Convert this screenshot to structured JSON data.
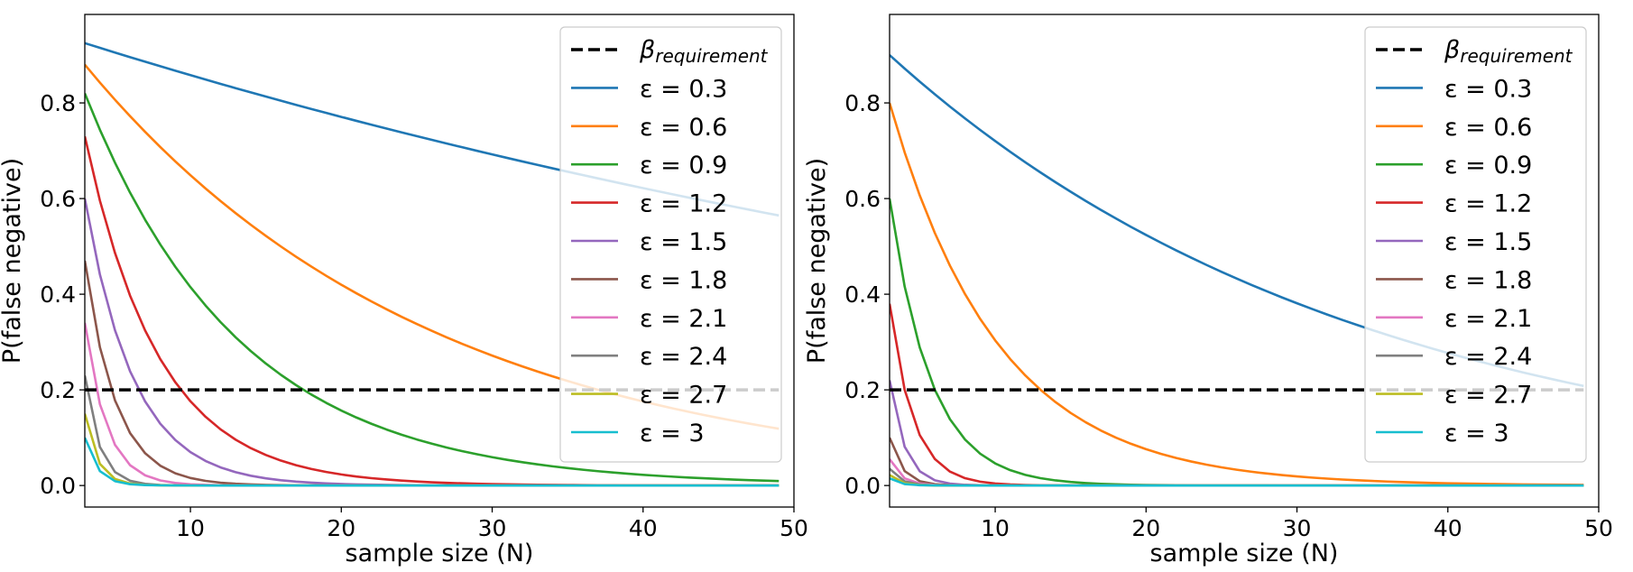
{
  "figure": {
    "description_panels": 2
  },
  "style": {
    "colors": [
      "#1f77b4",
      "#ff7f0e",
      "#2ca02c",
      "#d62728",
      "#9467bd",
      "#8c564b",
      "#e377c2",
      "#7f7f7f",
      "#bcbd22",
      "#17becf"
    ],
    "threshold_color": "#000000",
    "legend_border": "#cccccc"
  },
  "legend": {
    "threshold_label_main": "β",
    "threshold_label_sub": "requirement",
    "series_labels": [
      "ε = 0.3",
      "ε = 0.6",
      "ε = 0.9",
      "ε = 1.2",
      "ε = 1.5",
      "ε = 1.8",
      "ε = 2.1",
      "ε = 2.4",
      "ε = 2.7",
      "ε = 3"
    ]
  },
  "chart_data": [
    {
      "type": "line",
      "title": "",
      "xlabel": "sample size (N)",
      "ylabel": "P(false negative)",
      "xlim": [
        3,
        50
      ],
      "ylim": [
        -0.045,
        0.985
      ],
      "xticks": [
        10,
        20,
        30,
        40,
        50
      ],
      "xtick_labels": [
        "10",
        "20",
        "30",
        "40",
        "50"
      ],
      "yticks": [
        0.0,
        0.2,
        0.4,
        0.6,
        0.8
      ],
      "ytick_labels": [
        "0.0",
        "0.2",
        "0.4",
        "0.6",
        "0.8"
      ],
      "legend_position": "top-right",
      "threshold": 0.2,
      "x_range": [
        3,
        49
      ],
      "series": [
        {
          "name": "ε = 0.3",
          "start": 0.925,
          "rate": 0.01073
        },
        {
          "name": "ε = 0.6",
          "start": 0.88,
          "rate": 0.04353
        },
        {
          "name": "ε = 0.9",
          "start": 0.82,
          "rate": 0.09733
        },
        {
          "name": "ε = 1.2",
          "start": 0.73,
          "rate": 0.2031
        },
        {
          "name": "ε = 1.5",
          "start": 0.6,
          "rate": 0.3071
        },
        {
          "name": "ε = 1.8",
          "start": 0.47,
          "rate": 0.4855
        },
        {
          "name": "ε = 2.1",
          "start": 0.34,
          "rate": 0.6931
        },
        {
          "name": "ε = 2.4",
          "start": 0.23,
          "rate": 1.05
        },
        {
          "name": "ε = 2.7",
          "start": 0.15,
          "rate": 1.2
        },
        {
          "name": "ε = 3",
          "start": 0.1,
          "rate": 1.2
        }
      ]
    },
    {
      "type": "line",
      "title": "",
      "xlabel": "sample size (N)",
      "ylabel": "P(false negative)",
      "xlim": [
        3,
        50
      ],
      "ylim": [
        -0.045,
        0.985
      ],
      "xticks": [
        10,
        20,
        30,
        40,
        50
      ],
      "xtick_labels": [
        "10",
        "20",
        "30",
        "40",
        "50"
      ],
      "yticks": [
        0.0,
        0.2,
        0.4,
        0.6,
        0.8
      ],
      "ytick_labels": [
        "0.0",
        "0.2",
        "0.4",
        "0.6",
        "0.8"
      ],
      "legend_position": "top-right",
      "threshold": 0.2,
      "x_range": [
        3,
        49
      ],
      "series": [
        {
          "name": "ε = 0.3",
          "start": 0.9,
          "rate": 0.03183
        },
        {
          "name": "ε = 0.6",
          "start": 0.8,
          "rate": 0.1385
        },
        {
          "name": "ε = 0.9",
          "start": 0.6,
          "rate": 0.3662
        },
        {
          "name": "ε = 1.2",
          "start": 0.38,
          "rate": 0.6419
        },
        {
          "name": "ε = 1.5",
          "start": 0.22,
          "rate": 1.0
        },
        {
          "name": "ε = 1.8",
          "start": 0.1,
          "rate": 1.2
        },
        {
          "name": "ε = 2.1",
          "start": 0.055,
          "rate": 1.3
        },
        {
          "name": "ε = 2.4",
          "start": 0.035,
          "rate": 1.4
        },
        {
          "name": "ε = 2.7",
          "start": 0.022,
          "rate": 1.5
        },
        {
          "name": "ε = 3",
          "start": 0.015,
          "rate": 1.6
        }
      ]
    }
  ]
}
